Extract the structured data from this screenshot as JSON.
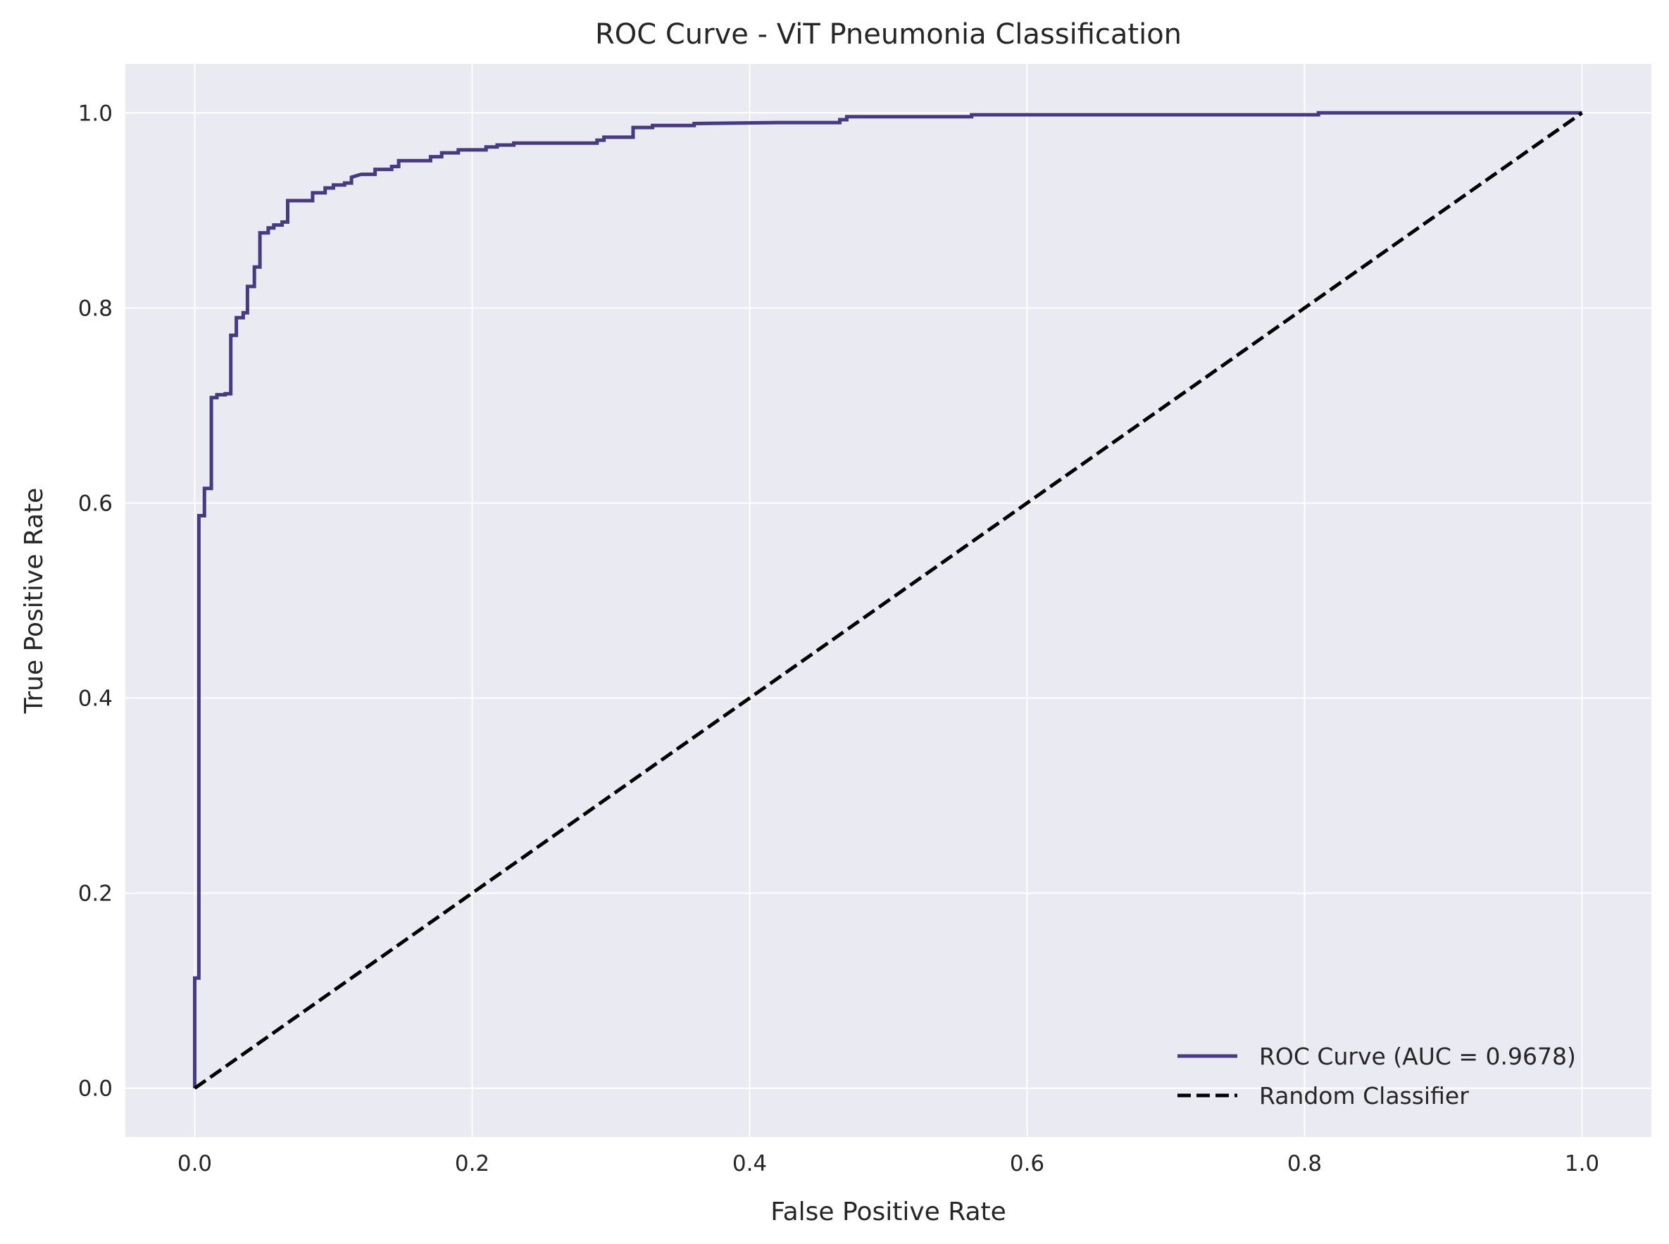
{
  "chart_data": {
    "type": "line",
    "title": "ROC Curve - ViT Pneumonia Classification",
    "xlabel": "False Positive Rate",
    "ylabel": "True Positive Rate",
    "xlim": [
      -0.05,
      1.05
    ],
    "ylim": [
      -0.05,
      1.05
    ],
    "x_ticks": [
      0.0,
      0.2,
      0.4,
      0.6,
      0.8,
      1.0
    ],
    "x_tick_labels": [
      "0.0",
      "0.2",
      "0.4",
      "0.6",
      "0.8",
      "1.0"
    ],
    "y_ticks": [
      0.0,
      0.2,
      0.4,
      0.6,
      0.8,
      1.0
    ],
    "y_tick_labels": [
      "0.0",
      "0.2",
      "0.4",
      "0.6",
      "0.8",
      "1.0"
    ],
    "grid": true,
    "legend_position": "lower-right",
    "colors": {
      "background": "#eaeaf2",
      "grid": "#ffffff",
      "roc": "#483a7e",
      "random": "#000000"
    },
    "series": [
      {
        "name": "ROC Curve (AUC = 0.9678)",
        "style": "solid",
        "x": [
          0.0,
          0.0,
          0.003,
          0.003,
          0.007,
          0.007,
          0.012,
          0.012,
          0.016,
          0.016,
          0.022,
          0.022,
          0.026,
          0.026,
          0.03,
          0.03,
          0.035,
          0.035,
          0.038,
          0.038,
          0.043,
          0.043,
          0.047,
          0.047,
          0.053,
          0.053,
          0.057,
          0.057,
          0.063,
          0.063,
          0.067,
          0.067,
          0.07,
          0.07,
          0.08,
          0.085,
          0.085,
          0.094,
          0.094,
          0.1,
          0.1,
          0.108,
          0.108,
          0.113,
          0.113,
          0.12,
          0.13,
          0.13,
          0.142,
          0.142,
          0.147,
          0.147,
          0.17,
          0.17,
          0.178,
          0.178,
          0.19,
          0.19,
          0.21,
          0.21,
          0.218,
          0.218,
          0.23,
          0.23,
          0.27,
          0.29,
          0.29,
          0.295,
          0.295,
          0.31,
          0.31,
          0.316,
          0.316,
          0.33,
          0.33,
          0.36,
          0.36,
          0.42,
          0.465,
          0.465,
          0.47,
          0.47,
          0.56,
          0.56,
          0.7,
          0.81,
          0.81,
          0.9,
          1.0
        ],
        "y": [
          0.0,
          0.113,
          0.113,
          0.587,
          0.587,
          0.615,
          0.615,
          0.708,
          0.708,
          0.711,
          0.711,
          0.712,
          0.712,
          0.772,
          0.772,
          0.79,
          0.79,
          0.795,
          0.795,
          0.822,
          0.822,
          0.842,
          0.842,
          0.877,
          0.877,
          0.882,
          0.882,
          0.885,
          0.885,
          0.888,
          0.888,
          0.91,
          0.91,
          0.91,
          0.91,
          0.91,
          0.918,
          0.918,
          0.923,
          0.923,
          0.926,
          0.926,
          0.928,
          0.928,
          0.934,
          0.937,
          0.937,
          0.942,
          0.942,
          0.945,
          0.945,
          0.951,
          0.951,
          0.955,
          0.955,
          0.959,
          0.959,
          0.962,
          0.962,
          0.965,
          0.965,
          0.967,
          0.967,
          0.969,
          0.969,
          0.969,
          0.972,
          0.972,
          0.975,
          0.975,
          0.975,
          0.975,
          0.985,
          0.985,
          0.987,
          0.987,
          0.989,
          0.99,
          0.99,
          0.993,
          0.993,
          0.996,
          0.996,
          0.998,
          0.998,
          0.998,
          1.0,
          1.0,
          1.0
        ]
      },
      {
        "name": "Random Classifier",
        "style": "dashed",
        "x": [
          0.0,
          1.0
        ],
        "y": [
          0.0,
          1.0
        ]
      }
    ]
  }
}
